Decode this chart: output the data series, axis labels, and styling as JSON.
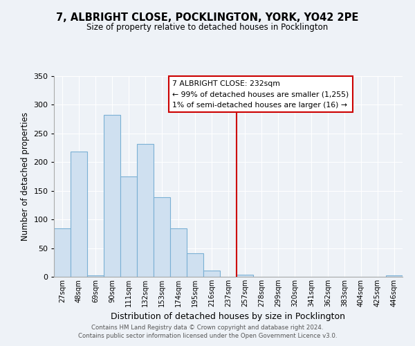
{
  "title": "7, ALBRIGHT CLOSE, POCKLINGTON, YORK, YO42 2PE",
  "subtitle": "Size of property relative to detached houses in Pocklington",
  "xlabel": "Distribution of detached houses by size in Pocklington",
  "ylabel": "Number of detached properties",
  "bar_labels": [
    "27sqm",
    "48sqm",
    "69sqm",
    "90sqm",
    "111sqm",
    "132sqm",
    "153sqm",
    "174sqm",
    "195sqm",
    "216sqm",
    "237sqm",
    "257sqm",
    "278sqm",
    "299sqm",
    "320sqm",
    "341sqm",
    "362sqm",
    "383sqm",
    "404sqm",
    "425sqm",
    "446sqm"
  ],
  "bar_values": [
    85,
    219,
    3,
    282,
    175,
    232,
    139,
    84,
    41,
    11,
    0,
    4,
    0,
    0,
    0,
    0,
    0,
    0,
    0,
    0,
    2
  ],
  "bar_color": "#cfe0f0",
  "bar_edge_color": "#7ab0d4",
  "highlight_line_color": "#cc0000",
  "highlight_bar_index": 10,
  "annotation_title": "7 ALBRIGHT CLOSE: 232sqm",
  "annotation_line1": "← 99% of detached houses are smaller (1,255)",
  "annotation_line2": "1% of semi-detached houses are larger (16) →",
  "annotation_box_color": "#cc0000",
  "ylim": [
    0,
    350
  ],
  "yticks": [
    0,
    50,
    100,
    150,
    200,
    250,
    300,
    350
  ],
  "footer_line1": "Contains HM Land Registry data © Crown copyright and database right 2024.",
  "footer_line2": "Contains public sector information licensed under the Open Government Licence v3.0.",
  "background_color": "#eef2f7",
  "grid_color": "#ffffff"
}
